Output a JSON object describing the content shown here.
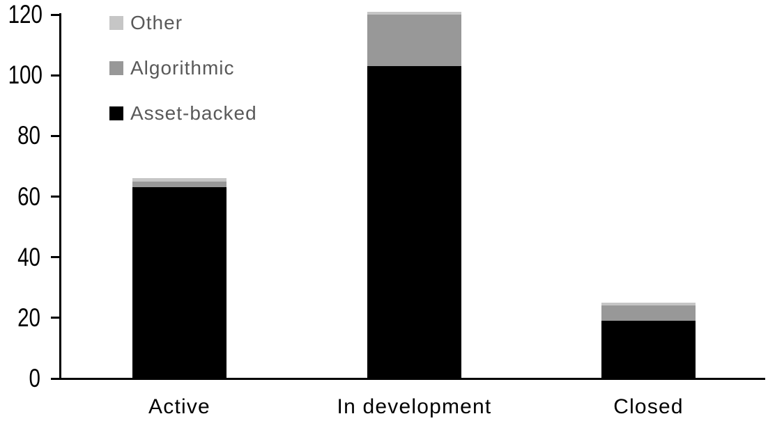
{
  "chart_data": {
    "type": "bar",
    "stacked": true,
    "title": "",
    "xlabel": "",
    "ylabel": "",
    "categories": [
      "Active",
      "In development",
      "Closed"
    ],
    "series": [
      {
        "name": "Asset-backed",
        "color": "#000000",
        "values": [
          63,
          103,
          19
        ]
      },
      {
        "name": "Algorithmic",
        "color": "#989898",
        "values": [
          2,
          17,
          5
        ]
      },
      {
        "name": "Other",
        "color": "#c6c6c6",
        "values": [
          1,
          1,
          1
        ]
      }
    ],
    "stack_totals": [
      66,
      121,
      25
    ],
    "ylim": [
      0,
      120
    ],
    "yticks": [
      0,
      20,
      40,
      60,
      80,
      100,
      120
    ],
    "grid": false,
    "legend_position": "top-left",
    "legend_order": [
      "Other",
      "Algorithmic",
      "Asset-backed"
    ]
  },
  "legend": {
    "items": [
      {
        "label": "Other",
        "color": "#c6c6c6"
      },
      {
        "label": "Algorithmic",
        "color": "#989898"
      },
      {
        "label": "Asset-backed",
        "color": "#000000"
      }
    ]
  },
  "colors": {
    "axis": "#000000",
    "y_tick_label": "#000000",
    "x_tick_label": "#000000",
    "legend_text": "#595959",
    "background": "#ffffff"
  }
}
